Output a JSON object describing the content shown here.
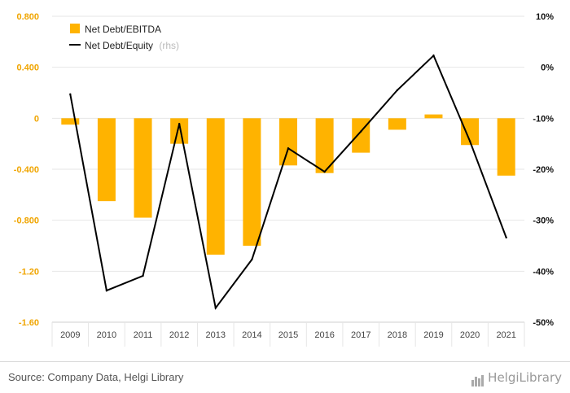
{
  "chart_data": {
    "type": "bar+line",
    "categories": [
      "2009",
      "2010",
      "2011",
      "2012",
      "2013",
      "2014",
      "2015",
      "2016",
      "2017",
      "2018",
      "2019",
      "2020",
      "2021"
    ],
    "series": [
      {
        "name": "Net Debt/EBITDA",
        "type": "bar",
        "axis": "left",
        "color": "#FFB300",
        "values": [
          -0.05,
          -0.65,
          -0.78,
          -0.2,
          -1.07,
          -1.0,
          -0.37,
          -0.43,
          -0.27,
          -0.09,
          0.03,
          -0.21,
          -0.45
        ]
      },
      {
        "name": "Net Debt/Equity",
        "type": "line",
        "axis": "right",
        "color": "#000000",
        "values": [
          -5.3,
          -43.8,
          -40.9,
          -11.1,
          -47.2,
          -37.7,
          -15.9,
          -20.5,
          -12.6,
          -4.5,
          2.3,
          -14.5,
          -33.4
        ]
      }
    ],
    "legend": {
      "position": "top-left",
      "rhs_note": "(rhs)"
    },
    "y_left": {
      "ylim": [
        -1.6,
        0.8
      ],
      "ticks": [
        0.8,
        0.4,
        0,
        -0.4,
        -0.8,
        -1.2,
        -1.6
      ],
      "tick_labels": [
        "0.800",
        "0.400",
        "0",
        "-0.400",
        "-0.800",
        "-1.20",
        "-1.60"
      ]
    },
    "y_right": {
      "ylim": [
        -50,
        10
      ],
      "ticks": [
        10,
        0,
        -10,
        -20,
        -30,
        -40,
        -50
      ],
      "tick_labels": [
        "10%",
        "0%",
        "-10%",
        "-20%",
        "-30%",
        "-40%",
        "-50%"
      ]
    },
    "grid": true
  },
  "footer": {
    "source": "Source: Company Data, Helgi Library",
    "brand": "HelgiLibrary"
  }
}
